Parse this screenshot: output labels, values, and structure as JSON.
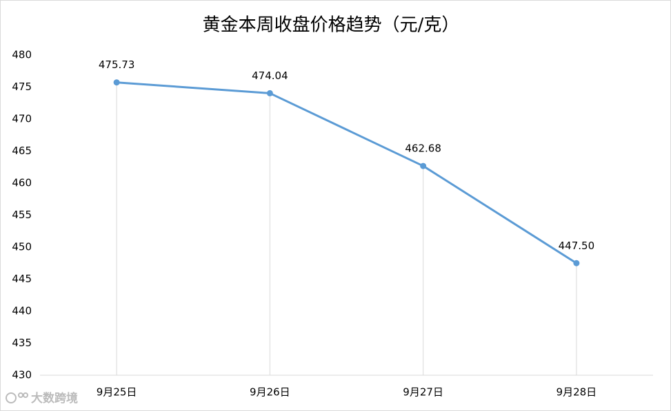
{
  "chart_data": {
    "type": "line",
    "title": "黄金本周收盘价格趋势（元/克）",
    "categories": [
      "9月25日",
      "9月26日",
      "9月27日",
      "9月28日"
    ],
    "values": [
      475.73,
      474.04,
      462.68,
      447.5
    ],
    "value_labels": [
      "475.73",
      "474.04",
      "462.68",
      "447.50"
    ],
    "color": "#5b9bd5",
    "ylim": [
      430,
      480
    ],
    "yticks": [
      430,
      435,
      440,
      445,
      450,
      455,
      460,
      465,
      470,
      475,
      480
    ],
    "drop_lines": true,
    "grid": false
  },
  "watermark": "大数跨境"
}
